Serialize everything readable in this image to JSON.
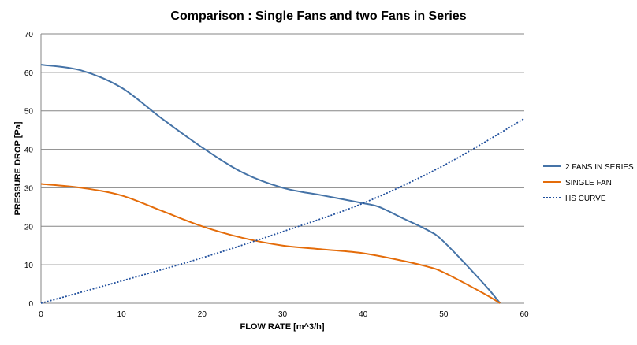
{
  "chart_data": {
    "type": "line",
    "title": "Comparison : Single Fans and two Fans in Series",
    "xlabel": "FLOW RATE [m^3/h]",
    "ylabel": "PRESSURE DROP [Pa]",
    "xlim": [
      0,
      60
    ],
    "ylim": [
      0,
      70
    ],
    "xticks": [
      0,
      10,
      20,
      30,
      40,
      50,
      60
    ],
    "yticks": [
      0,
      10,
      20,
      30,
      40,
      50,
      60,
      70
    ],
    "grid": "horizontal",
    "legend_position": "right",
    "series": [
      {
        "name": "2 FANS IN SERIES",
        "color": "#4573a7",
        "style": "solid",
        "x": [
          0,
          5,
          10,
          15,
          20,
          25,
          30,
          35,
          40,
          42,
          45,
          48,
          50,
          55,
          57
        ],
        "y": [
          62,
          60.5,
          56,
          48,
          40.5,
          34,
          30,
          28,
          26,
          25,
          22,
          19,
          16,
          5,
          0
        ]
      },
      {
        "name": "SINGLE FAN",
        "color": "#e46c0a",
        "style": "solid",
        "x": [
          0,
          5,
          10,
          15,
          20,
          25,
          30,
          35,
          40,
          45,
          48,
          50,
          55,
          57
        ],
        "y": [
          31,
          30,
          28,
          24,
          20,
          17,
          15,
          14,
          13,
          11,
          9.5,
          8,
          2.5,
          0
        ]
      },
      {
        "name": "HS CURVE",
        "color": "#1f4e9c",
        "style": "dotted",
        "x": [
          0,
          10,
          20,
          30,
          40,
          50,
          60
        ],
        "y": [
          0,
          5.8,
          11.8,
          18.6,
          26,
          35.8,
          48
        ]
      }
    ]
  }
}
